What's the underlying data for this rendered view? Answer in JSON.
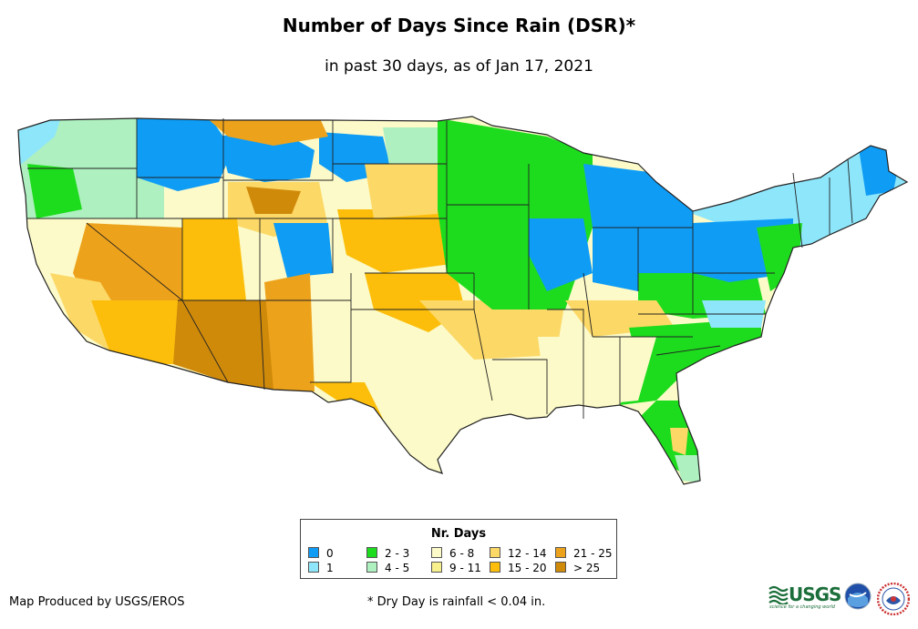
{
  "title": "Number of Days Since Rain (DSR)*",
  "subtitle": "in past 30 days, as of Jan 17, 2021",
  "legend": {
    "title": "Nr. Days",
    "items": [
      {
        "label": "0",
        "color": "#0f9cf5"
      },
      {
        "label": "1",
        "color": "#8ee6fb"
      },
      {
        "label": "2 - 3",
        "color": "#1ddc1d"
      },
      {
        "label": "4 - 5",
        "color": "#aef0bf"
      },
      {
        "label": "6 - 8",
        "color": "#fcfac8"
      },
      {
        "label": "9 - 11",
        "color": "#f8f08c"
      },
      {
        "label": "12 - 14",
        "color": "#fcd866"
      },
      {
        "label": "15 - 20",
        "color": "#fcbe0a"
      },
      {
        "label": "21 - 25",
        "color": "#eda21b"
      },
      {
        "label": "> 25",
        "color": "#d08a0a"
      }
    ]
  },
  "credit": "Map Produced by USGS/EROS",
  "footnote": "* Dry Day is rainfall < 0.04 in.",
  "logos": {
    "usgs_name": "USGS",
    "usgs_tagline": "science for a changing world",
    "noaa_name": "noaa",
    "nws_name": "NWS"
  }
}
